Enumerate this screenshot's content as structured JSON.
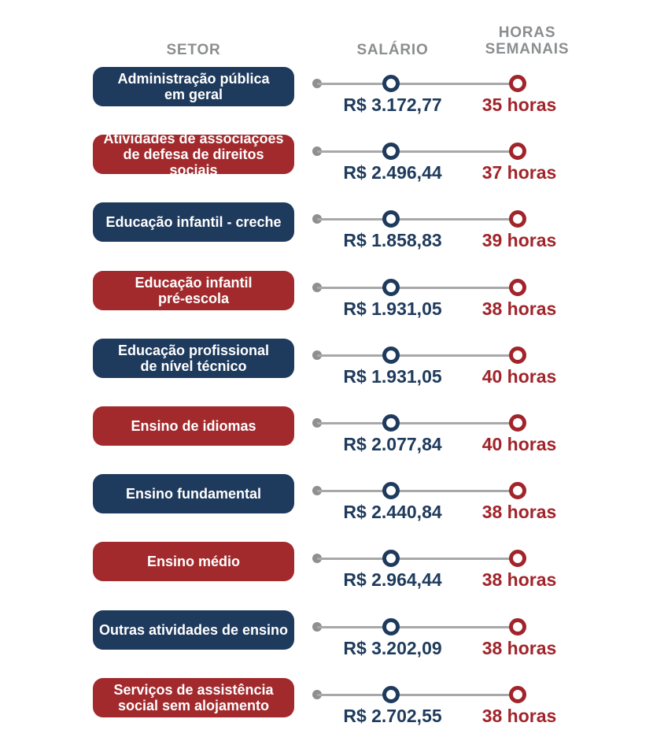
{
  "header": {
    "col_sector": "SETOR",
    "col_salary": "SALÁRIO",
    "col_hours": "HORAS SEMANAIS"
  },
  "colors": {
    "navy": "#1e3a5c",
    "red": "#a1242a",
    "header_gray": "#8b8e90",
    "line_gray": "#a8a8a8",
    "dot_gray": "#8f8f8f",
    "background": "#ffffff"
  },
  "rows": [
    {
      "sector": "Administração pública\nem geral",
      "salary": "R$ 3.172,77",
      "hours": "35 horas",
      "theme": "navy"
    },
    {
      "sector": "Atividades de associações\nde defesa de direitos sociais",
      "salary": "R$ 2.496,44",
      "hours": "37 horas",
      "theme": "red"
    },
    {
      "sector": "Educação infantil - creche",
      "salary": "R$ 1.858,83",
      "hours": "39 horas",
      "theme": "navy"
    },
    {
      "sector": "Educação infantil\npré-escola",
      "salary": "R$ 1.931,05",
      "hours": "38 horas",
      "theme": "red"
    },
    {
      "sector": "Educação profissional\nde nível técnico",
      "salary": "R$ 1.931,05",
      "hours": "40 horas",
      "theme": "navy"
    },
    {
      "sector": "Ensino de idiomas",
      "salary": "R$ 2.077,84",
      "hours": "40 horas",
      "theme": "red"
    },
    {
      "sector": "Ensino fundamental",
      "salary": "R$ 2.440,84",
      "hours": "38 horas",
      "theme": "navy"
    },
    {
      "sector": "Ensino médio",
      "salary": "R$ 2.964,44",
      "hours": "38 horas",
      "theme": "red"
    },
    {
      "sector": "Outras atividades de ensino",
      "salary": "R$ 3.202,09",
      "hours": "38 horas",
      "theme": "navy"
    },
    {
      "sector": "Serviços de assistência\nsocial sem alojamento",
      "salary": "R$ 2.702,55",
      "hours": "38 horas",
      "theme": "red"
    }
  ],
  "chart_data": {
    "type": "table",
    "title": "",
    "columns": [
      "SETOR",
      "SALÁRIO",
      "HORAS SEMANAIS"
    ],
    "categories": [
      "Administração pública em geral",
      "Atividades de associações de defesa de direitos sociais",
      "Educação infantil - creche",
      "Educação infantil pré-escola",
      "Educação profissional de nível técnico",
      "Ensino de idiomas",
      "Ensino fundamental",
      "Ensino médio",
      "Outras atividades de ensino",
      "Serviços de assistência social sem alojamento"
    ],
    "series": [
      {
        "name": "Salário (R$)",
        "values": [
          3172.77,
          2496.44,
          1858.83,
          1931.05,
          1931.05,
          2077.84,
          2440.84,
          2964.44,
          3202.09,
          2702.55
        ]
      },
      {
        "name": "Horas semanais",
        "values": [
          35,
          37,
          39,
          38,
          40,
          40,
          38,
          38,
          38,
          38
        ]
      }
    ],
    "legend_position": "none",
    "grid": false
  }
}
